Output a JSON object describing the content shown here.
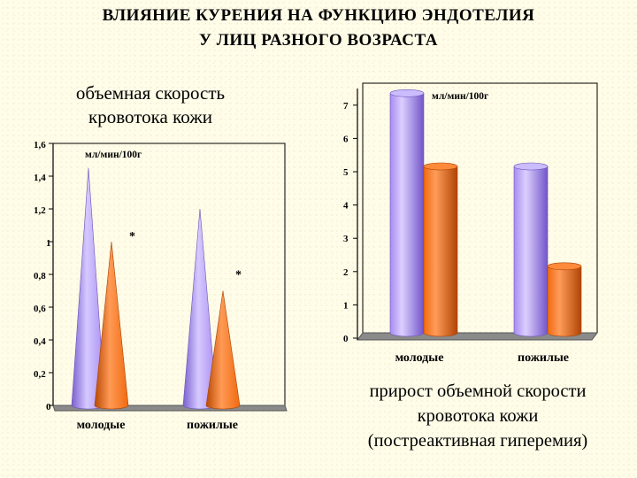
{
  "title": {
    "line1": "ВЛИЯНИЕ КУРЕНИЯ НА ФУНКЦИЮ ЭНДОТЕЛИЯ",
    "line2": "У ЛИЦ РАЗНОГО ВОЗРАСТА"
  },
  "left_caption": {
    "line1": "объемная скорость",
    "line2": "кровотока кожи"
  },
  "right_caption": {
    "line1": "прирост объемной скорости",
    "line2": "кровотока кожи",
    "line3": "(постреактивная гиперемия)"
  },
  "colors": {
    "purple": "#a78bf0",
    "orange": "#f06a10",
    "background": "#fffce8"
  },
  "chart_data": [
    {
      "type": "bar",
      "shape": "cone",
      "title": "объемная скорость кровотока кожи",
      "unit": "мл/мин/100г",
      "categories": [
        "молодые",
        "пожилые"
      ],
      "series": [
        {
          "color": "#a78bf0",
          "values": [
            1.45,
            1.2
          ]
        },
        {
          "color": "#f06a10",
          "values": [
            1.0,
            0.7
          ]
        }
      ],
      "annotations": [
        {
          "category": "молодые",
          "text": "*"
        },
        {
          "category": "пожилые",
          "text": "*"
        }
      ],
      "yticks": [
        "0",
        "0,2",
        "0,4",
        "0,6",
        "0,8",
        "1",
        "1,2",
        "1,4",
        "1,6"
      ],
      "ylim": [
        0,
        1.6
      ],
      "grid": false
    },
    {
      "type": "bar",
      "shape": "cylinder",
      "title": "прирост объемной скорости кровотока кожи (постреактивная гиперемия)",
      "unit": "мл/мин/100г",
      "categories": [
        "молодые",
        "пожилые"
      ],
      "series": [
        {
          "color": "#a78bf0",
          "values": [
            7.2,
            5.0
          ]
        },
        {
          "color": "#f06a10",
          "values": [
            5.0,
            2.0
          ]
        }
      ],
      "yticks": [
        "0",
        "1",
        "2",
        "3",
        "4",
        "5",
        "6",
        "7"
      ],
      "ylim": [
        0,
        7.5
      ],
      "grid": false
    }
  ]
}
